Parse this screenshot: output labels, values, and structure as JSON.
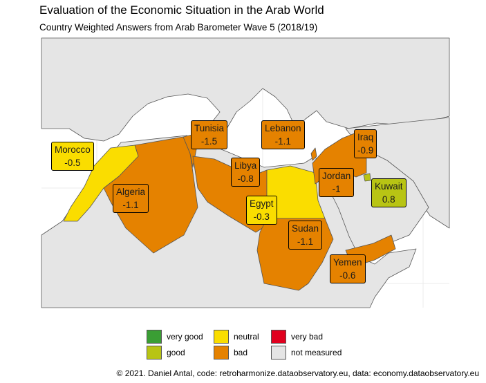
{
  "title": "Evaluation of the Economic Situation in the Arab World",
  "subtitle": "Country Weighted Answers from Arab Barometer Wave 5 (2018/19)",
  "colors": {
    "very_good": "#3a9e34",
    "good": "#b8c414",
    "neutral": "#fadd00",
    "bad": "#e58200",
    "very_bad": "#e0001e",
    "not_measured": "#e5e5e5",
    "border": "#555555"
  },
  "countries": [
    {
      "name": "Morocco",
      "value": "-0.5",
      "category": "neutral"
    },
    {
      "name": "Tunisia",
      "value": "-1.5",
      "category": "bad"
    },
    {
      "name": "Lebanon",
      "value": "-1.1",
      "category": "bad"
    },
    {
      "name": "Iraq",
      "value": "-0.9",
      "category": "bad"
    },
    {
      "name": "Libya",
      "value": "-0.8",
      "category": "bad"
    },
    {
      "name": "Jordan",
      "value": "-1",
      "category": "bad"
    },
    {
      "name": "Kuwait",
      "value": "0.8",
      "category": "good"
    },
    {
      "name": "Algeria",
      "value": "-1.1",
      "category": "bad"
    },
    {
      "name": "Egypt",
      "value": "-0.3",
      "category": "neutral"
    },
    {
      "name": "Sudan",
      "value": "-1.1",
      "category": "bad"
    },
    {
      "name": "Yemen",
      "value": "-0.6",
      "category": "bad"
    }
  ],
  "legend": {
    "very_good": "very good",
    "good": "good",
    "neutral": "neutral",
    "bad": "bad",
    "very_bad": "very bad",
    "not_measured": "not measured"
  },
  "caption": "© 2021. Daniel Antal, code: retroharmonize.dataobservatory.eu, data: economy.dataobservatory.eu"
}
